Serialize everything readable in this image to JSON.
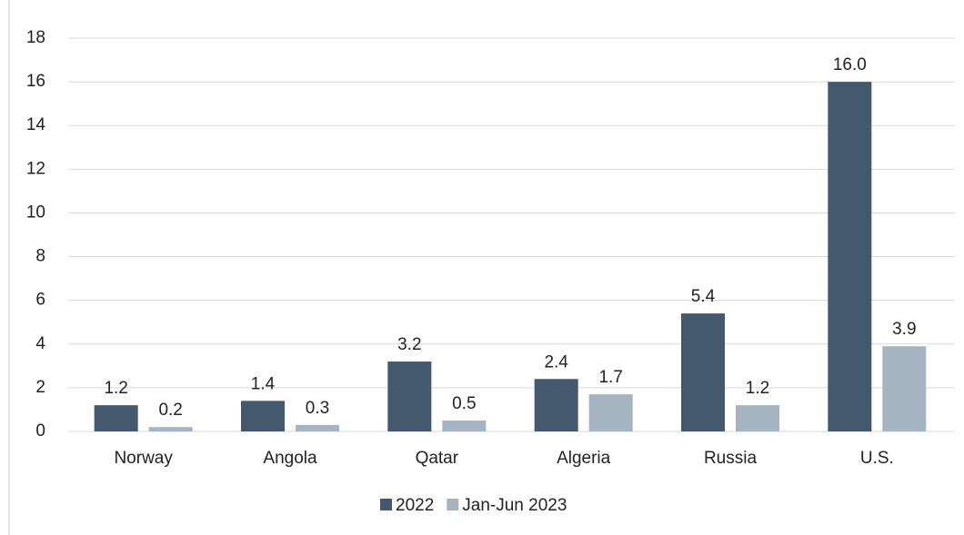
{
  "chart_data": {
    "type": "bar",
    "categories": [
      "Norway",
      "Angola",
      "Qatar",
      "Algeria",
      "Russia",
      "U.S."
    ],
    "series": [
      {
        "name": "2022",
        "color": "#44596e",
        "values": [
          1.2,
          1.4,
          3.2,
          2.4,
          5.4,
          16.0
        ],
        "value_labels": [
          "1.2",
          "1.4",
          "3.2",
          "2.4",
          "5.4",
          "16.0"
        ]
      },
      {
        "name": "Jan-Jun 2023",
        "color": "#a6b4c1",
        "values": [
          0.2,
          0.3,
          0.5,
          1.7,
          1.2,
          3.9
        ],
        "value_labels": [
          "0.2",
          "0.3",
          "0.5",
          "1.7",
          "1.2",
          "3.9"
        ]
      }
    ],
    "ylim": [
      0,
      18
    ],
    "yticks": [
      0,
      2,
      4,
      6,
      8,
      10,
      12,
      14,
      16,
      18
    ],
    "grid": true,
    "legend": "bottom"
  }
}
